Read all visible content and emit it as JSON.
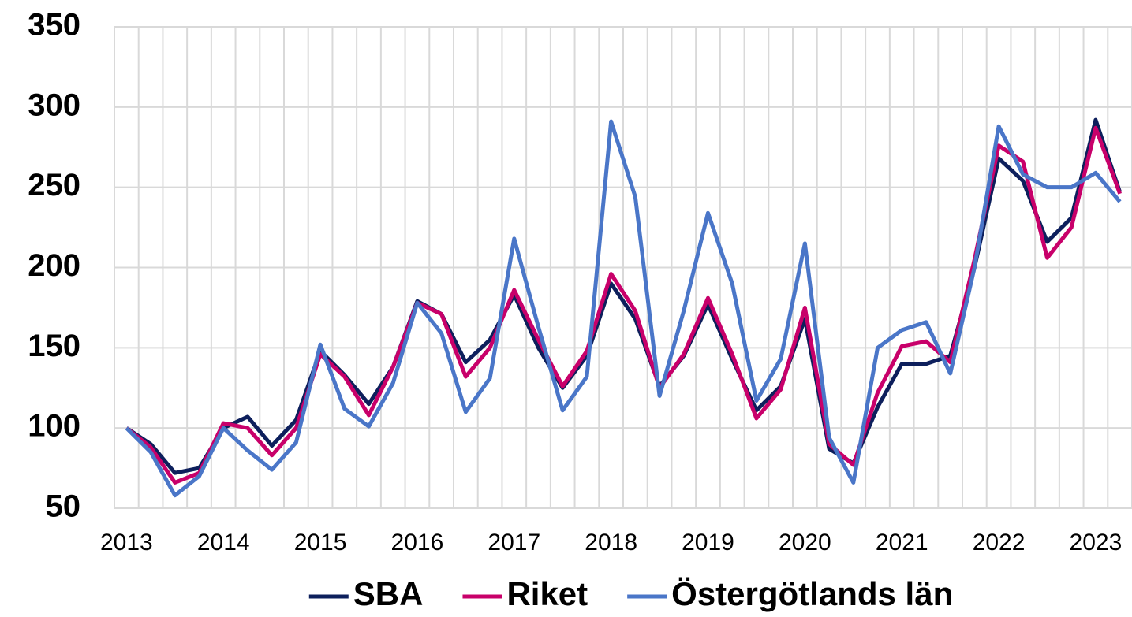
{
  "chart_data": {
    "type": "line",
    "categories": [
      "2013",
      null,
      null,
      null,
      "2014",
      null,
      null,
      null,
      "2015",
      null,
      null,
      null,
      "2016",
      null,
      null,
      null,
      "2017",
      null,
      null,
      null,
      "2018",
      null,
      null,
      null,
      "2019",
      null,
      null,
      null,
      "2020",
      null,
      null,
      null,
      "2021",
      null,
      null,
      null,
      "2022",
      null,
      null,
      null,
      "2023",
      null
    ],
    "series": [
      {
        "name": "SBA",
        "color": "#0d1f5c",
        "values": [
          100,
          90,
          72,
          75,
          100,
          107,
          89,
          105,
          148,
          133,
          115,
          138,
          179,
          171,
          141,
          155,
          183,
          150,
          125,
          145,
          190,
          168,
          126,
          145,
          177,
          143,
          111,
          126,
          168,
          87,
          78,
          113,
          140,
          140,
          145,
          200,
          268,
          254,
          216,
          231,
          292,
          247
        ]
      },
      {
        "name": "Riket",
        "color": "#c8006a",
        "values": [
          100,
          88,
          66,
          72,
          103,
          100,
          83,
          100,
          146,
          132,
          108,
          138,
          178,
          171,
          132,
          150,
          186,
          155,
          126,
          148,
          196,
          173,
          125,
          146,
          181,
          146,
          106,
          124,
          175,
          90,
          77,
          122,
          151,
          154,
          141,
          205,
          276,
          266,
          206,
          225,
          287,
          246
        ]
      },
      {
        "name": "Östergötlands län",
        "color": "#4a76c8",
        "values": [
          100,
          85,
          58,
          70,
          100,
          86,
          74,
          91,
          152,
          112,
          101,
          128,
          178,
          159,
          110,
          131,
          218,
          163,
          111,
          132,
          291,
          244,
          120,
          173,
          234,
          190,
          117,
          143,
          215,
          94,
          66,
          150,
          161,
          166,
          134,
          200,
          288,
          258,
          250,
          250,
          259,
          241
        ]
      }
    ],
    "ylim": [
      50,
      350
    ],
    "yticks": [
      50,
      100,
      150,
      200,
      250,
      300,
      350
    ],
    "grid": true,
    "legend": "bottom"
  }
}
